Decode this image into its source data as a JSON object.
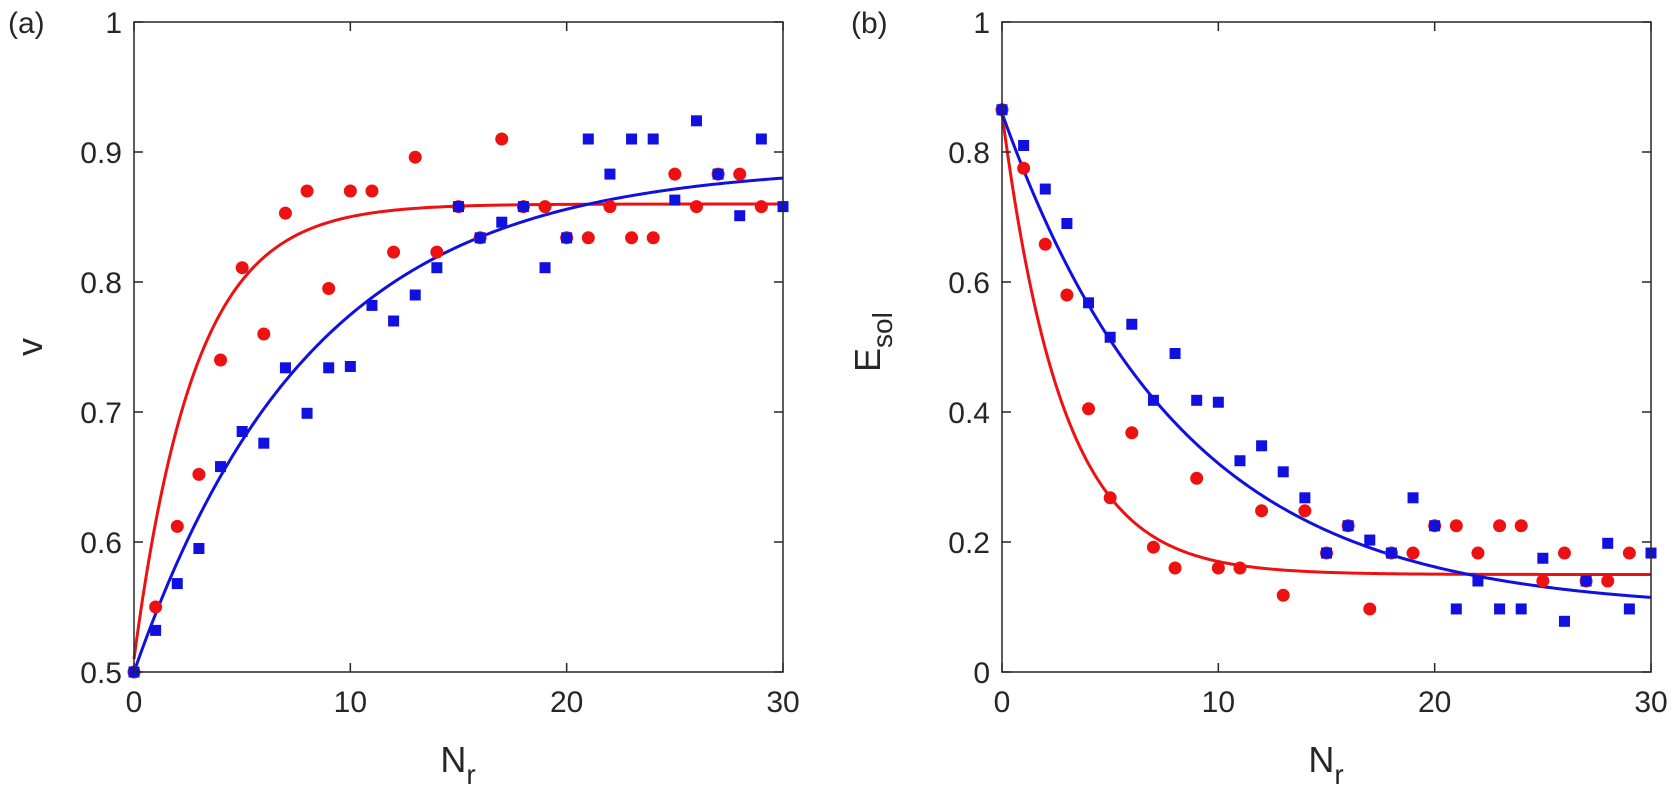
{
  "chart_data": [
    {
      "type": "scatter",
      "panel_label": "(a)",
      "xlabel": "N",
      "xlabel_sub": "r",
      "ylabel": "v",
      "ylabel_sub": "",
      "xlim": [
        0,
        30
      ],
      "ylim": [
        0.5,
        1
      ],
      "xticks": [
        0,
        10,
        20,
        30
      ],
      "yticks": [
        0.5,
        0.6,
        0.7,
        0.8,
        0.9,
        1
      ],
      "xtick_labels": [
        "0",
        "10",
        "20",
        "30"
      ],
      "ytick_labels": [
        "0.5",
        "0.6",
        "0.7",
        "0.8",
        "0.9",
        "1"
      ],
      "grid": false,
      "series": [
        {
          "name": "red circles",
          "color": "#ee1111",
          "marker": "circle",
          "x": [
            0,
            1,
            2,
            3,
            4,
            5,
            6,
            7,
            8,
            9,
            10,
            11,
            12,
            13,
            14,
            15,
            16,
            17,
            18,
            19,
            20,
            21,
            22,
            23,
            24,
            25,
            26,
            27,
            28,
            29
          ],
          "y": [
            0.5,
            0.55,
            0.612,
            0.652,
            0.74,
            0.811,
            0.76,
            0.853,
            0.87,
            0.795,
            0.87,
            0.87,
            0.823,
            0.896,
            0.823,
            0.858,
            0.834,
            0.91,
            0.858,
            0.858,
            0.834,
            0.834,
            0.858,
            0.834,
            0.834,
            0.883,
            0.858,
            0.883,
            0.883,
            0.858
          ],
          "fit": {
            "model": "a - (a - b)*exp(-x/c)",
            "a": 0.86,
            "b": 0.51,
            "c": 2.8
          }
        },
        {
          "name": "blue squares",
          "color": "#1010e0",
          "marker": "square",
          "x": [
            0,
            1,
            2,
            3,
            4,
            5,
            6,
            7,
            8,
            9,
            10,
            11,
            12,
            13,
            14,
            15,
            16,
            17,
            18,
            19,
            20,
            21,
            22,
            23,
            24,
            25,
            26,
            27,
            28,
            29,
            30
          ],
          "y": [
            0.5,
            0.532,
            0.568,
            0.595,
            0.658,
            0.685,
            0.676,
            0.734,
            0.699,
            0.734,
            0.735,
            0.782,
            0.77,
            0.79,
            0.811,
            0.858,
            0.834,
            0.846,
            0.858,
            0.811,
            0.834,
            0.91,
            0.883,
            0.91,
            0.91,
            0.863,
            0.924,
            0.883,
            0.851,
            0.91,
            0.858
          ],
          "fit": {
            "model": "a - (a - b)*exp(-x/c)",
            "a": 0.89,
            "b": 0.5,
            "c": 8.2
          }
        }
      ]
    },
    {
      "type": "scatter",
      "panel_label": "(b)",
      "xlabel": "N",
      "xlabel_sub": "r",
      "ylabel": "E",
      "ylabel_sub": "sol",
      "xlim": [
        0,
        30
      ],
      "ylim": [
        0,
        1
      ],
      "xticks": [
        0,
        10,
        20,
        30
      ],
      "yticks": [
        0,
        0.2,
        0.4,
        0.6,
        0.8,
        1
      ],
      "xtick_labels": [
        "0",
        "10",
        "20",
        "30"
      ],
      "ytick_labels": [
        "0",
        "0.2",
        "0.4",
        "0.6",
        "0.8",
        "1"
      ],
      "grid": false,
      "series": [
        {
          "name": "red circles",
          "color": "#ee1111",
          "marker": "circle",
          "x": [
            0,
            1,
            2,
            3,
            4,
            5,
            6,
            7,
            8,
            9,
            10,
            11,
            12,
            13,
            14,
            15,
            16,
            17,
            18,
            19,
            20,
            21,
            22,
            23,
            24,
            25,
            26,
            27,
            28,
            29
          ],
          "y": [
            0.865,
            0.775,
            0.658,
            0.58,
            0.405,
            0.268,
            0.368,
            0.192,
            0.16,
            0.298,
            0.16,
            0.16,
            0.248,
            0.118,
            0.248,
            0.183,
            0.225,
            0.097,
            0.183,
            0.183,
            0.225,
            0.225,
            0.183,
            0.225,
            0.225,
            0.14,
            0.183,
            0.14,
            0.14,
            0.183
          ],
          "fit": {
            "model": "a + (b - a)*exp(-x/c)",
            "a": 0.15,
            "b": 0.86,
            "c": 2.8
          }
        },
        {
          "name": "blue squares",
          "color": "#1010e0",
          "marker": "square",
          "x": [
            0,
            1,
            2,
            3,
            4,
            5,
            6,
            7,
            8,
            9,
            10,
            11,
            12,
            13,
            14,
            15,
            16,
            17,
            18,
            19,
            20,
            21,
            22,
            23,
            24,
            25,
            26,
            27,
            28,
            29,
            30
          ],
          "y": [
            0.865,
            0.81,
            0.743,
            0.69,
            0.568,
            0.515,
            0.535,
            0.418,
            0.49,
            0.418,
            0.415,
            0.325,
            0.348,
            0.308,
            0.268,
            0.183,
            0.225,
            0.203,
            0.183,
            0.268,
            0.225,
            0.097,
            0.14,
            0.097,
            0.097,
            0.175,
            0.078,
            0.14,
            0.198,
            0.097,
            0.183
          ],
          "fit": {
            "model": "a + (b - a)*exp(-x/c)",
            "a": 0.095,
            "b": 0.86,
            "c": 8.2
          }
        }
      ]
    }
  ]
}
